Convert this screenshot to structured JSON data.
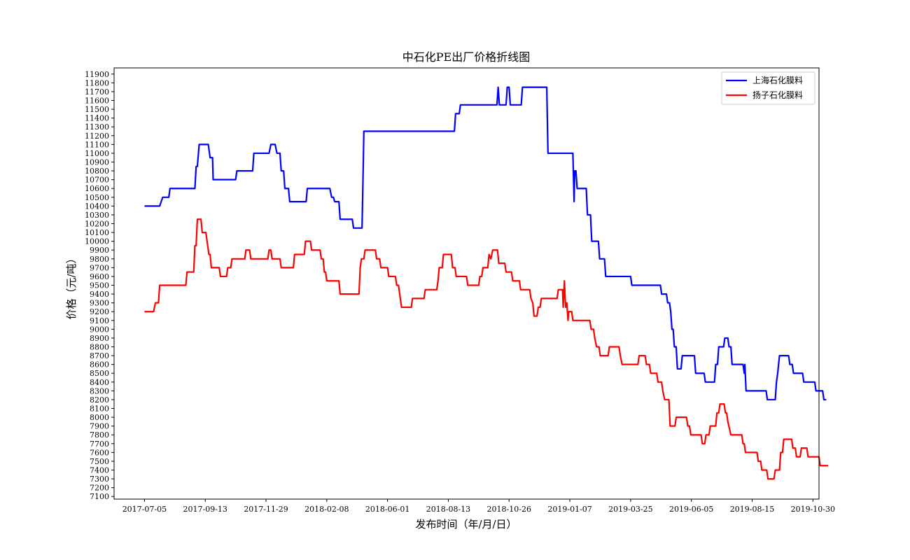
{
  "chart_data": {
    "type": "line",
    "title": "中石化PE出厂价格折线图",
    "xlabel": "发布时间（年/月/日）",
    "ylabel": "价格（元/吨）",
    "x_tick_labels": [
      "2017-07-05",
      "2017-09-13",
      "2017-11-29",
      "2018-02-08",
      "2018-06-01",
      "2018-08-13",
      "2018-10-26",
      "2019-01-07",
      "2019-03-25",
      "2019-06-05",
      "2019-08-15",
      "2019-10-30"
    ],
    "y_tick_labels": [
      "7100",
      "7200",
      "7300",
      "7400",
      "7500",
      "7600",
      "7700",
      "7800",
      "7900",
      "8000",
      "8100",
      "8200",
      "8300",
      "8400",
      "8500",
      "8600",
      "8700",
      "8800",
      "8900",
      "9000",
      "9100",
      "9200",
      "9300",
      "9400",
      "9500",
      "9600",
      "9700",
      "9800",
      "9900",
      "10000",
      "10100",
      "10200",
      "10300",
      "10400",
      "10500",
      "10600",
      "10700",
      "10800",
      "10900",
      "11000",
      "11100",
      "11200",
      "11300",
      "11400",
      "11500",
      "11600",
      "11700",
      "11800",
      "11900"
    ],
    "ylim": [
      7070,
      11970
    ],
    "xlim": [
      -5,
      111
    ],
    "legend_position": "top-right",
    "grid": false,
    "colors": {
      "series1": "#0000ff",
      "series2": "#ff0000"
    },
    "series": [
      {
        "name": "上海石化膜料",
        "color": "#0000ff",
        "points": [
          [
            0,
            10400
          ],
          [
            2.5,
            10400
          ],
          [
            3,
            10500
          ],
          [
            4,
            10500
          ],
          [
            4.2,
            10600
          ],
          [
            8.3,
            10600
          ],
          [
            8.5,
            10850
          ],
          [
            8.7,
            10850
          ],
          [
            9,
            11100
          ],
          [
            10.5,
            11100
          ],
          [
            10.8,
            10950
          ],
          [
            11.2,
            10950
          ],
          [
            11.3,
            10700
          ],
          [
            15,
            10700
          ],
          [
            15.2,
            10800
          ],
          [
            17.8,
            10800
          ],
          [
            18,
            11000
          ],
          [
            20.5,
            11000
          ],
          [
            20.8,
            11100
          ],
          [
            21.5,
            11100
          ],
          [
            21.8,
            11000
          ],
          [
            22.3,
            11000
          ],
          [
            22.5,
            10800
          ],
          [
            22.9,
            10800
          ],
          [
            23.1,
            10600
          ],
          [
            23.7,
            10600
          ],
          [
            23.9,
            10450
          ],
          [
            26.6,
            10450
          ],
          [
            26.8,
            10600
          ],
          [
            30.5,
            10600
          ],
          [
            30.8,
            10500
          ],
          [
            31.1,
            10500
          ],
          [
            31.3,
            10450
          ],
          [
            32,
            10450
          ],
          [
            32.2,
            10250
          ],
          [
            34.2,
            10250
          ],
          [
            34.4,
            10150
          ],
          [
            35.8,
            10150
          ],
          [
            36,
            10850
          ],
          [
            36.1,
            11250
          ],
          [
            51,
            11250
          ],
          [
            51.2,
            11450
          ],
          [
            51.8,
            11450
          ],
          [
            52,
            11550
          ],
          [
            58,
            11550
          ],
          [
            58.2,
            11750
          ],
          [
            58.4,
            11550
          ],
          [
            59.5,
            11550
          ],
          [
            59.7,
            11750
          ],
          [
            60,
            11750
          ],
          [
            60.2,
            11550
          ],
          [
            62,
            11550
          ],
          [
            62.2,
            11750
          ],
          [
            66.2,
            11750
          ],
          [
            66.4,
            11000
          ],
          [
            70.5,
            11000
          ],
          [
            70.7,
            10450
          ],
          [
            70.8,
            10800
          ],
          [
            71,
            10800
          ],
          [
            71.2,
            10600
          ],
          [
            72.7,
            10600
          ],
          [
            72.9,
            10300
          ],
          [
            73.4,
            10300
          ],
          [
            73.6,
            10000
          ],
          [
            74.7,
            10000
          ],
          [
            74.9,
            9800
          ],
          [
            75.7,
            9800
          ],
          [
            75.9,
            9600
          ],
          [
            80,
            9600
          ],
          [
            80.2,
            9500
          ],
          [
            84.9,
            9500
          ],
          [
            85.1,
            9400
          ],
          [
            85.9,
            9400
          ],
          [
            86.1,
            9300
          ],
          [
            86.4,
            9300
          ],
          [
            86.6,
            9200
          ],
          [
            86.8,
            9000
          ],
          [
            87,
            9000
          ],
          [
            87.2,
            8800
          ],
          [
            87.5,
            8800
          ],
          [
            87.7,
            8550
          ],
          [
            88.3,
            8550
          ],
          [
            88.5,
            8700
          ],
          [
            90.5,
            8700
          ],
          [
            90.7,
            8500
          ],
          [
            92.1,
            8500
          ],
          [
            92.3,
            8400
          ],
          [
            93.8,
            8400
          ],
          [
            94,
            8600
          ],
          [
            94.3,
            8600
          ],
          [
            94.5,
            8800
          ],
          [
            95.3,
            8800
          ],
          [
            95.5,
            8900
          ],
          [
            96,
            8900
          ],
          [
            96.2,
            8800
          ],
          [
            96.5,
            8800
          ],
          [
            96.7,
            8600
          ],
          [
            98.5,
            8600
          ],
          [
            98.7,
            8500
          ],
          [
            98.8,
            8600
          ],
          [
            99,
            8300
          ],
          [
            102.3,
            8300
          ],
          [
            102.5,
            8200
          ],
          [
            103.8,
            8200
          ],
          [
            104,
            8400
          ],
          [
            104.2,
            8500
          ],
          [
            104.5,
            8700
          ],
          [
            106,
            8700
          ],
          [
            106.2,
            8600
          ],
          [
            106.6,
            8600
          ],
          [
            106.8,
            8500
          ],
          [
            108.3,
            8500
          ],
          [
            108.5,
            8400
          ],
          [
            110.3,
            8400
          ],
          [
            110.5,
            8300
          ],
          [
            111.6,
            8300
          ],
          [
            111.8,
            8200
          ],
          [
            112.2,
            8200
          ]
        ]
      },
      {
        "name": "扬子石化膜料",
        "color": "#ff0000",
        "points": [
          [
            0,
            9200
          ],
          [
            1.5,
            9200
          ],
          [
            1.8,
            9300
          ],
          [
            2.3,
            9300
          ],
          [
            2.5,
            9500
          ],
          [
            6.8,
            9500
          ],
          [
            7,
            9650
          ],
          [
            8.1,
            9650
          ],
          [
            8.3,
            9950
          ],
          [
            8.5,
            9950
          ],
          [
            8.7,
            10250
          ],
          [
            9.3,
            10250
          ],
          [
            9.5,
            10100
          ],
          [
            10.1,
            10100
          ],
          [
            10.3,
            10000
          ],
          [
            10.6,
            9850
          ],
          [
            10.8,
            9850
          ],
          [
            11,
            9700
          ],
          [
            12.3,
            9700
          ],
          [
            12.5,
            9600
          ],
          [
            13.5,
            9600
          ],
          [
            13.7,
            9700
          ],
          [
            14.2,
            9700
          ],
          [
            14.4,
            9800
          ],
          [
            16.5,
            9800
          ],
          [
            16.7,
            9900
          ],
          [
            17.3,
            9900
          ],
          [
            17.5,
            9800
          ],
          [
            20.3,
            9800
          ],
          [
            20.5,
            9900
          ],
          [
            20.8,
            9900
          ],
          [
            21,
            9800
          ],
          [
            22.3,
            9800
          ],
          [
            22.5,
            9700
          ],
          [
            24.5,
            9700
          ],
          [
            24.7,
            9850
          ],
          [
            26.3,
            9850
          ],
          [
            26.5,
            10000
          ],
          [
            27.3,
            10000
          ],
          [
            27.5,
            9900
          ],
          [
            28.9,
            9900
          ],
          [
            29.1,
            9800
          ],
          [
            29.4,
            9800
          ],
          [
            29.6,
            9650
          ],
          [
            29.8,
            9650
          ],
          [
            30,
            9550
          ],
          [
            32,
            9550
          ],
          [
            32.2,
            9400
          ],
          [
            35.3,
            9400
          ],
          [
            35.5,
            9700
          ],
          [
            35.7,
            9800
          ],
          [
            36.1,
            9800
          ],
          [
            36.3,
            9900
          ],
          [
            38,
            9900
          ],
          [
            38.2,
            9800
          ],
          [
            38.7,
            9800
          ],
          [
            38.9,
            9700
          ],
          [
            40,
            9700
          ],
          [
            40.2,
            9600
          ],
          [
            41.3,
            9600
          ],
          [
            41.5,
            9500
          ],
          [
            41.8,
            9500
          ],
          [
            42,
            9400
          ],
          [
            42.3,
            9250
          ],
          [
            43.9,
            9250
          ],
          [
            44.1,
            9350
          ],
          [
            46,
            9350
          ],
          [
            46.2,
            9450
          ],
          [
            48.1,
            9450
          ],
          [
            48.3,
            9550
          ],
          [
            48.5,
            9700
          ],
          [
            49,
            9700
          ],
          [
            49.2,
            9850
          ],
          [
            50.5,
            9850
          ],
          [
            50.7,
            9700
          ],
          [
            51.1,
            9700
          ],
          [
            51.3,
            9600
          ],
          [
            53,
            9600
          ],
          [
            53.2,
            9500
          ],
          [
            55,
            9500
          ],
          [
            55.2,
            9600
          ],
          [
            55.5,
            9600
          ],
          [
            55.7,
            9700
          ],
          [
            56.5,
            9700
          ],
          [
            56.7,
            9850
          ],
          [
            57,
            9800
          ],
          [
            57.3,
            9900
          ],
          [
            58.1,
            9900
          ],
          [
            58.3,
            9750
          ],
          [
            59.3,
            9750
          ],
          [
            59.5,
            9650
          ],
          [
            60.4,
            9650
          ],
          [
            60.6,
            9550
          ],
          [
            61.7,
            9550
          ],
          [
            61.9,
            9450
          ],
          [
            63.4,
            9450
          ],
          [
            63.6,
            9350
          ],
          [
            63.9,
            9300
          ],
          [
            64.1,
            9150
          ],
          [
            64.6,
            9150
          ],
          [
            64.8,
            9250
          ],
          [
            65.1,
            9250
          ],
          [
            65.3,
            9350
          ],
          [
            67.9,
            9350
          ],
          [
            68.1,
            9450
          ],
          [
            68.8,
            9450
          ],
          [
            68.9,
            9250
          ],
          [
            69.1,
            9550
          ],
          [
            69.3,
            9250
          ],
          [
            69.5,
            9300
          ],
          [
            69.7,
            9100
          ],
          [
            69.8,
            9200
          ],
          [
            70.3,
            9200
          ],
          [
            70.5,
            9100
          ],
          [
            73.3,
            9100
          ],
          [
            73.5,
            9000
          ],
          [
            73.9,
            9000
          ],
          [
            74.1,
            8900
          ],
          [
            74.4,
            8800
          ],
          [
            74.8,
            8800
          ],
          [
            75,
            8700
          ],
          [
            76.3,
            8700
          ],
          [
            76.5,
            8800
          ],
          [
            78.1,
            8800
          ],
          [
            78.3,
            8700
          ],
          [
            78.6,
            8600
          ],
          [
            81.2,
            8600
          ],
          [
            81.4,
            8700
          ],
          [
            82.4,
            8700
          ],
          [
            82.6,
            8600
          ],
          [
            83.1,
            8600
          ],
          [
            83.3,
            8500
          ],
          [
            84.3,
            8500
          ],
          [
            84.5,
            8400
          ],
          [
            85.1,
            8400
          ],
          [
            85.3,
            8300
          ],
          [
            85.6,
            8200
          ],
          [
            86.3,
            8200
          ],
          [
            86.5,
            7900
          ],
          [
            87.3,
            7900
          ],
          [
            87.5,
            8000
          ],
          [
            89.2,
            8000
          ],
          [
            89.4,
            7900
          ],
          [
            89.7,
            7900
          ],
          [
            89.9,
            7800
          ],
          [
            91.6,
            7800
          ],
          [
            91.8,
            7700
          ],
          [
            92.2,
            7700
          ],
          [
            92.4,
            7800
          ],
          [
            92.9,
            7800
          ],
          [
            93.1,
            7900
          ],
          [
            94,
            7900
          ],
          [
            94.2,
            8050
          ],
          [
            94.5,
            8050
          ],
          [
            94.7,
            8150
          ],
          [
            95.4,
            8150
          ],
          [
            95.6,
            8050
          ],
          [
            95.8,
            8050
          ],
          [
            96,
            7950
          ],
          [
            96.5,
            7800
          ],
          [
            98.3,
            7800
          ],
          [
            98.5,
            7700
          ],
          [
            98.7,
            7700
          ],
          [
            98.9,
            7600
          ],
          [
            100.8,
            7600
          ],
          [
            101,
            7500
          ],
          [
            101.4,
            7500
          ],
          [
            101.6,
            7400
          ],
          [
            102.4,
            7400
          ],
          [
            102.6,
            7300
          ],
          [
            103.6,
            7300
          ],
          [
            103.8,
            7400
          ],
          [
            104.5,
            7400
          ],
          [
            104.7,
            7600
          ],
          [
            105,
            7600
          ],
          [
            105.2,
            7750
          ],
          [
            106.5,
            7750
          ],
          [
            106.7,
            7650
          ],
          [
            107.1,
            7650
          ],
          [
            107.3,
            7550
          ],
          [
            107.9,
            7550
          ],
          [
            108.1,
            7650
          ],
          [
            109,
            7650
          ],
          [
            109.2,
            7550
          ],
          [
            111,
            7550
          ],
          [
            111.2,
            7450
          ],
          [
            112.5,
            7450
          ]
        ]
      }
    ]
  }
}
